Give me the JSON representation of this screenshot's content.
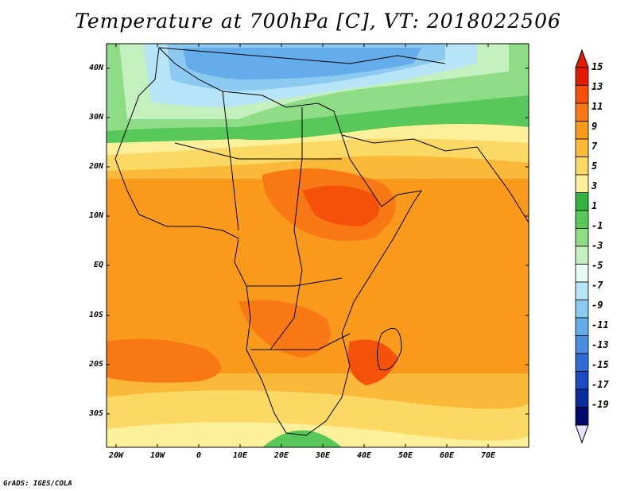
{
  "title": "Temperature at 700hPa [C], VT: 2018022506",
  "lat_labels": [
    "40N",
    "30N",
    "20N",
    "10N",
    "EQ",
    "10S",
    "20S",
    "30S"
  ],
  "lon_labels": [
    "20W",
    "10W",
    "0",
    "10E",
    "20E",
    "30E",
    "40E",
    "50E",
    "60E",
    "70E"
  ],
  "colorbar": {
    "labels": [
      "15",
      "13",
      "11",
      "9",
      "7",
      "5",
      "3",
      "1",
      "-1",
      "-3",
      "-5",
      "-7",
      "-9",
      "-11",
      "-13",
      "-15",
      "-17",
      "-19"
    ],
    "colors": [
      "#e31a00",
      "#f4520a",
      "#f77814",
      "#f99a1c",
      "#fbb93a",
      "#fcd865",
      "#fcf09a",
      "#32b43c",
      "#58c85a",
      "#8fdc86",
      "#c4f0c0",
      "#e8fcf4",
      "#b8e4f8",
      "#8ccaf2",
      "#64acea",
      "#4a8ee2",
      "#2e6cd4",
      "#1a4cc0",
      "#0c2c9c",
      "#000a6a"
    ]
  },
  "credit": "GrADS: IGES/COLA"
}
